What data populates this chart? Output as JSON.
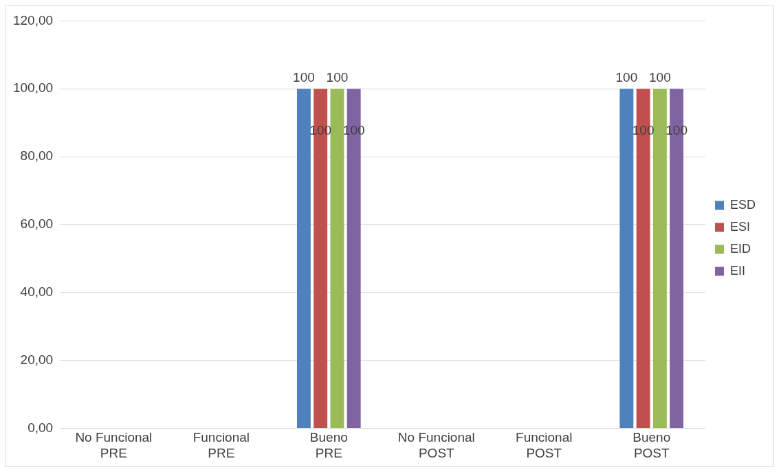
{
  "chart_data": {
    "type": "bar",
    "categories": [
      "No Funcional PRE",
      "Funcional PRE",
      "Bueno PRE",
      "No Funcional POST",
      "Funcional POST",
      "Bueno POST"
    ],
    "series": [
      {
        "name": "ESD",
        "color": "#4f81bd",
        "values": [
          0,
          0,
          100,
          0,
          0,
          100
        ],
        "value_labels": [
          null,
          null,
          "100",
          null,
          null,
          "100"
        ]
      },
      {
        "name": "ESI",
        "color": "#c0504d",
        "values": [
          0,
          0,
          100,
          0,
          0,
          100
        ],
        "value_labels": [
          null,
          null,
          "100",
          null,
          null,
          "100"
        ]
      },
      {
        "name": "EID",
        "color": "#9bbb59",
        "values": [
          0,
          0,
          100,
          0,
          0,
          100
        ],
        "value_labels": [
          null,
          null,
          "100",
          null,
          null,
          "100"
        ]
      },
      {
        "name": "EII",
        "color": "#8064a2",
        "values": [
          0,
          0,
          100,
          0,
          0,
          100
        ],
        "value_labels": [
          null,
          null,
          "100",
          null,
          null,
          "100"
        ]
      }
    ],
    "ylim": [
      0,
      120
    ],
    "yticks": [
      {
        "value": 0,
        "label": "0,00"
      },
      {
        "value": 20,
        "label": "20,00"
      },
      {
        "value": 40,
        "label": "40,00"
      },
      {
        "value": 60,
        "label": "60,00"
      },
      {
        "value": 80,
        "label": "80,00"
      },
      {
        "value": 100,
        "label": "100,00"
      },
      {
        "value": 120,
        "label": "120,00"
      }
    ],
    "grid": "y",
    "legend": "right"
  }
}
